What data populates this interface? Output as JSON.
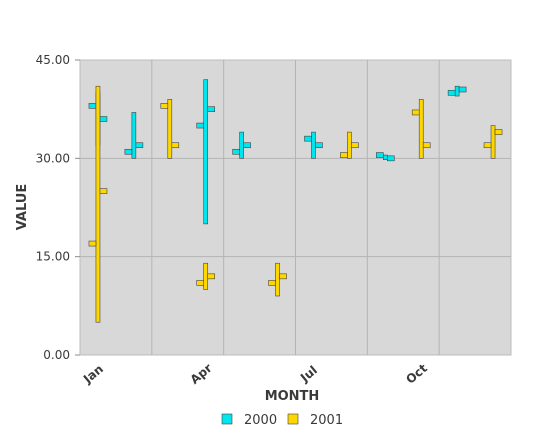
{
  "chart_data": {
    "type": "stock",
    "xlabel": "MONTH",
    "ylabel": "VALUE",
    "ylim": [
      0,
      45
    ],
    "yticks": [
      "0.00",
      "15.00",
      "30.00",
      "45.00"
    ],
    "categories": [
      "Jan",
      "Feb",
      "Mar",
      "Apr",
      "May",
      "Jun",
      "Jul",
      "Aug",
      "Sep",
      "Oct",
      "Nov",
      "Dec"
    ],
    "x_tick_labels": [
      "Jan",
      "Apr",
      "Jul",
      "Oct"
    ],
    "grid": true,
    "legend": "bottom",
    "series": [
      {
        "name": "2000",
        "color": "#00e5ee",
        "points": [
          {
            "category": "Jan",
            "open": 38,
            "high": 40,
            "low": 32,
            "close": 36
          },
          {
            "category": "Feb",
            "open": 31,
            "high": 37,
            "low": 30,
            "close": 32
          },
          {
            "category": "Apr",
            "open": 35,
            "high": 42,
            "low": 20,
            "close": 37.5
          },
          {
            "category": "May",
            "open": 31,
            "high": 34,
            "low": 30,
            "close": 32
          },
          {
            "category": "Jul",
            "open": 33,
            "high": 34,
            "low": 30,
            "close": 32
          },
          {
            "category": "Sep",
            "open": 30.5,
            "high": 30.5,
            "low": 29.8,
            "close": 30
          },
          {
            "category": "Nov",
            "open": 40,
            "high": 41,
            "low": 39.5,
            "close": 40.5
          }
        ]
      },
      {
        "name": "2001",
        "color": "#ffd700",
        "points": [
          {
            "category": "Jan",
            "open": 17,
            "high": 41,
            "low": 5,
            "close": 25
          },
          {
            "category": "Mar",
            "open": 38,
            "high": 39,
            "low": 30,
            "close": 32
          },
          {
            "category": "Apr",
            "open": 11,
            "high": 14,
            "low": 10,
            "close": 12
          },
          {
            "category": "Jun",
            "open": 11,
            "high": 14,
            "low": 9,
            "close": 12
          },
          {
            "category": "Aug",
            "open": 30.5,
            "high": 34,
            "low": 30,
            "close": 32
          },
          {
            "category": "Oct",
            "open": 37,
            "high": 39,
            "low": 30,
            "close": 32
          },
          {
            "category": "Dec",
            "open": 32,
            "high": 35,
            "low": 30,
            "close": 34
          }
        ]
      }
    ]
  }
}
